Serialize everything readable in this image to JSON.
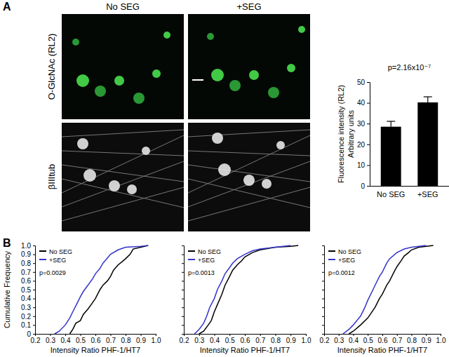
{
  "figure": {
    "panel_labels": [
      "A",
      "B"
    ],
    "columns": [
      "No SEG",
      "+SEG"
    ],
    "rows": [
      "O-GlcNAc (RL2)",
      "βIIItub"
    ]
  },
  "chart_data": [
    {
      "type": "bar",
      "y_label": [
        "Fluorescence intensity (RL2)",
        "Arbitrary units"
      ],
      "annotation": "p=2.16x10⁻⁷",
      "categories": [
        "No SEG",
        "+SEG"
      ],
      "values": [
        28.5,
        40.2
      ],
      "errors": [
        2.6,
        2.7
      ],
      "color": "#000000",
      "ylim": [
        0,
        50
      ],
      "yticks": [
        0,
        10,
        20,
        30,
        40,
        50
      ]
    },
    {
      "type": "line",
      "x_label": "Intensity Ratio PHF-1/HT7",
      "y_label": "Cumulative Frequency",
      "annotation": "p=0.0029",
      "legend": "upper left",
      "xlim": [
        0.2,
        1.0
      ],
      "ylim": [
        0,
        1.0
      ],
      "xticks": [
        0.2,
        0.3,
        0.4,
        0.5,
        0.6,
        0.7,
        0.8,
        0.9,
        {
          "value": 1,
          "label": "1.0"
        }
      ],
      "yticks": [
        0,
        0.1,
        0.2,
        0.3,
        0.4,
        0.5,
        0.6,
        0.7,
        0.8,
        0.9,
        {
          "value": 1,
          "label": "1.0"
        }
      ],
      "series": [
        {
          "name": "No SEG",
          "color": "#000000",
          "x": [
            0.43,
            0.45,
            0.47,
            0.5,
            0.52,
            0.55,
            0.58,
            0.6,
            0.63,
            0.65,
            0.68,
            0.7,
            0.72,
            0.75,
            0.78,
            0.8,
            0.83,
            0.85,
            0.9,
            0.95
          ],
          "values": [
            0,
            0.05,
            0.12,
            0.15,
            0.22,
            0.28,
            0.35,
            0.4,
            0.5,
            0.55,
            0.6,
            0.65,
            0.72,
            0.78,
            0.82,
            0.85,
            0.9,
            0.96,
            0.98,
            1.0
          ]
        },
        {
          "name": "+SEG",
          "color": "#3333cc",
          "x": [
            0.33,
            0.36,
            0.4,
            0.43,
            0.45,
            0.48,
            0.5,
            0.52,
            0.55,
            0.58,
            0.6,
            0.63,
            0.65,
            0.68,
            0.7,
            0.75,
            0.8,
            0.9,
            0.95
          ],
          "values": [
            0,
            0.03,
            0.1,
            0.18,
            0.25,
            0.35,
            0.42,
            0.48,
            0.55,
            0.62,
            0.68,
            0.74,
            0.8,
            0.86,
            0.9,
            0.95,
            0.98,
            0.99,
            1.0
          ]
        }
      ]
    },
    {
      "type": "line",
      "x_label": "Intensity Ratio PHF-1/HT7",
      "annotation": "p=0.0013",
      "legend": "upper left",
      "tick_labels": "x",
      "xlim": [
        0.2,
        1.0
      ],
      "ylim": [
        0,
        1.0
      ],
      "xticks": [
        0.2,
        0.3,
        0.4,
        0.5,
        0.6,
        0.7,
        0.8,
        0.9,
        {
          "value": 1,
          "label": "1.0"
        }
      ],
      "yticks": [
        0,
        0.1,
        0.2,
        0.3,
        0.4,
        0.5,
        0.6,
        0.7,
        0.8,
        0.9,
        1
      ],
      "series": [
        {
          "name": "No SEG",
          "color": "#000000",
          "x": [
            0.3,
            0.33,
            0.36,
            0.38,
            0.4,
            0.42,
            0.45,
            0.47,
            0.5,
            0.52,
            0.55,
            0.58,
            0.6,
            0.65,
            0.7,
            0.8,
            0.9,
            0.95
          ],
          "values": [
            0,
            0.03,
            0.1,
            0.15,
            0.25,
            0.33,
            0.45,
            0.55,
            0.65,
            0.72,
            0.78,
            0.83,
            0.87,
            0.92,
            0.95,
            0.98,
            0.99,
            1.0
          ]
        },
        {
          "name": "+SEG",
          "color": "#3333cc",
          "x": [
            0.27,
            0.3,
            0.33,
            0.35,
            0.37,
            0.4,
            0.42,
            0.45,
            0.47,
            0.5,
            0.52,
            0.55,
            0.6,
            0.65,
            0.7,
            0.8,
            0.9
          ],
          "values": [
            0,
            0.05,
            0.12,
            0.2,
            0.3,
            0.4,
            0.5,
            0.6,
            0.68,
            0.75,
            0.8,
            0.85,
            0.9,
            0.94,
            0.96,
            0.98,
            1.0
          ]
        }
      ]
    },
    {
      "type": "line",
      "x_label": "Intensity Ratio PHF-1/HT7",
      "annotation": "p=0.0012",
      "legend": "upper left",
      "tick_labels": "x",
      "xlim": [
        0.2,
        1.0
      ],
      "ylim": [
        0,
        1.0
      ],
      "xticks": [
        0.2,
        0.3,
        0.4,
        0.5,
        0.6,
        0.7,
        0.8,
        0.9,
        {
          "value": 1,
          "label": "1.0"
        }
      ],
      "yticks": [
        0,
        0.1,
        0.2,
        0.3,
        0.4,
        0.5,
        0.6,
        0.7,
        0.8,
        0.9,
        1
      ],
      "series": [
        {
          "name": "No SEG",
          "color": "#000000",
          "x": [
            0.37,
            0.4,
            0.45,
            0.5,
            0.55,
            0.58,
            0.6,
            0.63,
            0.65,
            0.68,
            0.7,
            0.73,
            0.75,
            0.78,
            0.8,
            0.85,
            0.9,
            0.95
          ],
          "values": [
            0,
            0.03,
            0.1,
            0.18,
            0.3,
            0.4,
            0.45,
            0.55,
            0.6,
            0.7,
            0.76,
            0.83,
            0.88,
            0.92,
            0.95,
            0.98,
            0.99,
            1.0
          ]
        },
        {
          "name": "+SEG",
          "color": "#3333cc",
          "x": [
            0.33,
            0.37,
            0.4,
            0.45,
            0.48,
            0.5,
            0.53,
            0.55,
            0.58,
            0.6,
            0.63,
            0.65,
            0.7,
            0.75,
            0.8,
            0.9
          ],
          "values": [
            0,
            0.05,
            0.1,
            0.2,
            0.3,
            0.38,
            0.48,
            0.55,
            0.65,
            0.7,
            0.8,
            0.85,
            0.92,
            0.96,
            0.98,
            1.0
          ]
        }
      ]
    }
  ]
}
